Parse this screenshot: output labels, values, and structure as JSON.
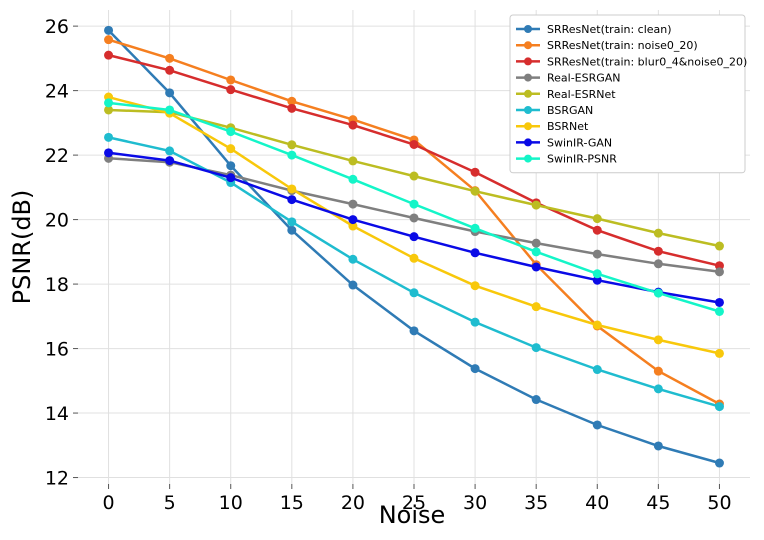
{
  "chart_data": {
    "type": "line",
    "xlabel": "Noise",
    "ylabel": "PSNR(dB)",
    "x": [
      0,
      5,
      10,
      15,
      20,
      25,
      30,
      35,
      40,
      45,
      50
    ],
    "xticks": [
      "0",
      "5",
      "10",
      "15",
      "20",
      "25",
      "30",
      "35",
      "40",
      "45",
      "50"
    ],
    "yticks": [
      "12",
      "14",
      "16",
      "18",
      "20",
      "22",
      "24",
      "26"
    ],
    "xlim": [
      -2.5,
      52.5
    ],
    "ylim": [
      11.8,
      26.5
    ],
    "grid": true,
    "legend_position": "top-right",
    "series": [
      {
        "name": "SRResNet(train: clean)",
        "color": "#2f7bb5",
        "values": [
          25.87,
          23.93,
          21.67,
          19.67,
          17.97,
          16.55,
          15.38,
          14.42,
          13.63,
          12.98,
          12.45
        ]
      },
      {
        "name": "SRResNet(train: noise0_20)",
        "color": "#f57f20",
        "values": [
          25.58,
          25.0,
          24.33,
          23.67,
          23.1,
          22.47,
          20.9,
          18.6,
          16.7,
          15.3,
          14.28
        ]
      },
      {
        "name": "SRResNet(train: blur0_4&noise0_20)",
        "color": "#d62d2d",
        "values": [
          25.1,
          24.63,
          24.03,
          23.45,
          22.93,
          22.33,
          21.47,
          20.52,
          19.67,
          19.02,
          18.57
        ]
      },
      {
        "name": "Real-ESRGAN",
        "color": "#7f7f7f",
        "values": [
          21.9,
          21.78,
          21.38,
          20.9,
          20.48,
          20.05,
          19.63,
          19.27,
          18.93,
          18.63,
          18.38
        ]
      },
      {
        "name": "Real-ESRNet",
        "color": "#bcbd22",
        "values": [
          23.4,
          23.33,
          22.85,
          22.32,
          21.82,
          21.35,
          20.88,
          20.45,
          20.03,
          19.58,
          19.18
        ]
      },
      {
        "name": "BSRGAN",
        "color": "#1fbccf",
        "values": [
          22.55,
          22.13,
          21.15,
          19.93,
          18.77,
          17.73,
          16.82,
          16.03,
          15.35,
          14.75,
          14.2
        ]
      },
      {
        "name": "BSRNet",
        "color": "#f8c80b",
        "values": [
          23.8,
          23.3,
          22.2,
          20.95,
          19.8,
          18.8,
          17.95,
          17.3,
          16.73,
          16.27,
          15.85
        ]
      },
      {
        "name": "SwinIR-GAN",
        "color": "#0a0ae6",
        "values": [
          22.07,
          21.83,
          21.3,
          20.62,
          20.0,
          19.47,
          18.97,
          18.53,
          18.12,
          17.75,
          17.43
        ]
      },
      {
        "name": "SwinIR-PSNR",
        "color": "#14f5c8",
        "values": [
          23.62,
          23.4,
          22.73,
          22.0,
          21.25,
          20.48,
          19.73,
          19.0,
          18.32,
          17.72,
          17.15
        ]
      }
    ]
  }
}
